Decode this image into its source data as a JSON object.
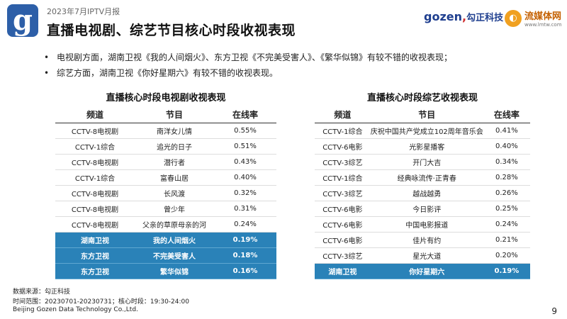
{
  "header": {
    "report_label": "2023年7月IPTV月报",
    "title": "直播电视剧、综艺节目核心时段收视表现",
    "logo_left": "g",
    "brand_gozen_latin": "gozen",
    "brand_gozen_cn": "勾正科技",
    "brand_lmtw_cn": "流媒体网",
    "brand_lmtw_url": "www.lmtw.com"
  },
  "bullets": [
    "电视剧方面，湖南卫视《我的人间烟火》、东方卫视《不完美受害人》、《繁华似锦》有较不错的收视表现；",
    "综艺方面，湖南卫视《你好星期六》有较不错的收视表现。"
  ],
  "drama_table": {
    "title": "直播核心时段电视剧收视表现",
    "headers": [
      "频道",
      "节目",
      "在线率"
    ],
    "rows": [
      {
        "channel": "CCTV-8电视剧",
        "program": "南洋女儿情",
        "rate": "0.55%",
        "highlight": false
      },
      {
        "channel": "CCTV-1综合",
        "program": "追光的日子",
        "rate": "0.51%",
        "highlight": false
      },
      {
        "channel": "CCTV-8电视剧",
        "program": "潜行者",
        "rate": "0.43%",
        "highlight": false
      },
      {
        "channel": "CCTV-1综合",
        "program": "富春山居",
        "rate": "0.40%",
        "highlight": false
      },
      {
        "channel": "CCTV-8电视剧",
        "program": "长风渡",
        "rate": "0.32%",
        "highlight": false
      },
      {
        "channel": "CCTV-8电视剧",
        "program": "曾少年",
        "rate": "0.31%",
        "highlight": false
      },
      {
        "channel": "CCTV-8电视剧",
        "program": "父亲的草原母亲的河",
        "rate": "0.24%",
        "highlight": false
      },
      {
        "channel": "湖南卫视",
        "program": "我的人间烟火",
        "rate": "0.19%",
        "highlight": true
      },
      {
        "channel": "东方卫视",
        "program": "不完美受害人",
        "rate": "0.18%",
        "highlight": true
      },
      {
        "channel": "东方卫视",
        "program": "繁华似锦",
        "rate": "0.16%",
        "highlight": true
      }
    ]
  },
  "variety_table": {
    "title": "直播核心时段综艺收视表现",
    "headers": [
      "频道",
      "节目",
      "在线率"
    ],
    "rows": [
      {
        "channel": "CCTV-1综合",
        "program": "庆祝中国共产党成立102周年音乐会",
        "rate": "0.41%",
        "highlight": false
      },
      {
        "channel": "CCTV-6电影",
        "program": "光影星播客",
        "rate": "0.40%",
        "highlight": false
      },
      {
        "channel": "CCTV-3综艺",
        "program": "开门大吉",
        "rate": "0.34%",
        "highlight": false
      },
      {
        "channel": "CCTV-1综合",
        "program": "经典咏流传·正青春",
        "rate": "0.28%",
        "highlight": false
      },
      {
        "channel": "CCTV-3综艺",
        "program": "越战越勇",
        "rate": "0.26%",
        "highlight": false
      },
      {
        "channel": "CCTV-6电影",
        "program": "今日影评",
        "rate": "0.25%",
        "highlight": false
      },
      {
        "channel": "CCTV-6电影",
        "program": "中国电影报道",
        "rate": "0.24%",
        "highlight": false
      },
      {
        "channel": "CCTV-6电影",
        "program": "佳片有约",
        "rate": "0.21%",
        "highlight": false
      },
      {
        "channel": "CCTV-3综艺",
        "program": "星光大道",
        "rate": "0.20%",
        "highlight": false
      },
      {
        "channel": "湖南卫视",
        "program": "你好星期六",
        "rate": "0.19%",
        "highlight": true
      }
    ]
  },
  "footer": {
    "source": "数据来源：勾正科技",
    "range": "时间范围：20230701-20230731；核心时段：19:30-24:00",
    "company": "Beijing Gozen Data Technology Co.,Ltd."
  },
  "page_number": "9",
  "colors": {
    "highlight_row": "#2a82b8",
    "brand_blue": "#1f3f8f",
    "logo_blue": "#2d5fa8"
  }
}
